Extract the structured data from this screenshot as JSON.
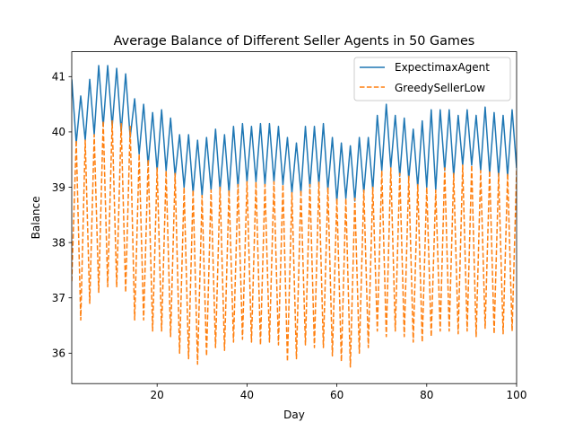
{
  "chart_data": {
    "type": "line",
    "title": "Average Balance of Different Seller Agents in 50 Games",
    "xlabel": "Day",
    "ylabel": "Balance",
    "xlim": [
      1,
      100
    ],
    "ylim": [
      35.45,
      41.45
    ],
    "xticks": [
      20,
      40,
      60,
      80,
      100
    ],
    "yticks": [
      36,
      37,
      38,
      39,
      40,
      41
    ],
    "grid": false,
    "legend_position": "upper-right",
    "colors": {
      "ExpectimaxAgent": "#1f77b4",
      "GreedySellerLow": "#ff7f0e"
    },
    "series": [
      {
        "name": "ExpectimaxAgent",
        "line_style": "solid",
        "x": [
          1,
          2,
          3,
          4,
          5,
          6,
          7,
          8,
          9,
          10,
          11,
          12,
          13,
          14,
          15,
          16,
          17,
          18,
          19,
          20,
          21,
          22,
          23,
          24,
          25,
          26,
          27,
          28,
          29,
          30,
          31,
          32,
          33,
          34,
          35,
          36,
          37,
          38,
          39,
          40,
          41,
          42,
          43,
          44,
          45,
          46,
          47,
          48,
          49,
          50,
          51,
          52,
          53,
          54,
          55,
          56,
          57,
          58,
          59,
          60,
          61,
          62,
          63,
          64,
          65,
          66,
          67,
          68,
          69,
          70,
          71,
          72,
          73,
          74,
          75,
          76,
          77,
          78,
          79,
          80,
          81,
          82,
          83,
          84,
          85,
          86,
          87,
          88,
          89,
          90,
          91,
          92,
          93,
          94,
          95,
          96,
          97,
          98,
          99,
          100
        ],
        "values": [
          40.95,
          39.8,
          40.65,
          39.85,
          40.95,
          39.95,
          41.2,
          40.1,
          41.2,
          40.1,
          41.15,
          40.0,
          41.05,
          39.9,
          40.6,
          39.6,
          40.5,
          39.4,
          40.35,
          39.3,
          40.4,
          39.3,
          40.25,
          39.2,
          39.95,
          39.0,
          39.95,
          38.9,
          39.85,
          38.85,
          39.9,
          38.95,
          40.05,
          38.95,
          39.95,
          38.9,
          40.1,
          39.0,
          40.15,
          39.1,
          40.1,
          39.1,
          40.15,
          39.05,
          40.15,
          39.1,
          40.1,
          39.05,
          39.9,
          38.9,
          39.8,
          38.9,
          40.1,
          39.0,
          40.1,
          39.05,
          40.15,
          38.95,
          39.9,
          38.75,
          39.8,
          38.8,
          39.75,
          38.75,
          39.9,
          38.9,
          39.9,
          38.95,
          40.3,
          39.3,
          40.5,
          39.35,
          40.3,
          39.2,
          40.25,
          39.15,
          40.05,
          39.0,
          40.2,
          39.0,
          40.4,
          38.95,
          40.4,
          39.3,
          40.4,
          39.2,
          40.3,
          39.4,
          40.4,
          39.4,
          40.3,
          39.3,
          40.45,
          39.25,
          40.35,
          39.2,
          40.3,
          39.2,
          40.4,
          39.35
        ]
      },
      {
        "name": "GreedySellerLow",
        "line_style": "dashed",
        "x": [
          1,
          2,
          3,
          4,
          5,
          6,
          7,
          8,
          9,
          10,
          11,
          12,
          13,
          14,
          15,
          16,
          17,
          18,
          19,
          20,
          21,
          22,
          23,
          24,
          25,
          26,
          27,
          28,
          29,
          30,
          31,
          32,
          33,
          34,
          35,
          36,
          37,
          38,
          39,
          40,
          41,
          42,
          43,
          44,
          45,
          46,
          47,
          48,
          49,
          50,
          51,
          52,
          53,
          54,
          55,
          56,
          57,
          58,
          59,
          60,
          61,
          62,
          63,
          64,
          65,
          66,
          67,
          68,
          69,
          70,
          71,
          72,
          73,
          74,
          75,
          76,
          77,
          78,
          79,
          80,
          81,
          82,
          83,
          84,
          85,
          86,
          87,
          88,
          89,
          90,
          91,
          92,
          93,
          94,
          95,
          96,
          97,
          98,
          99,
          100
        ],
        "values": [
          37.3,
          39.85,
          36.6,
          39.85,
          36.9,
          39.95,
          37.1,
          40.2,
          37.2,
          40.2,
          37.2,
          40.15,
          37.1,
          40.1,
          36.6,
          39.6,
          36.6,
          39.5,
          36.4,
          39.35,
          36.4,
          39.3,
          36.3,
          39.25,
          36.0,
          39.0,
          35.9,
          38.95,
          35.8,
          38.85,
          35.95,
          38.95,
          36.1,
          39.0,
          36.05,
          38.95,
          36.2,
          39.05,
          36.25,
          39.1,
          36.2,
          39.1,
          36.15,
          39.05,
          36.2,
          39.1,
          36.15,
          39.05,
          35.85,
          38.9,
          35.9,
          38.95,
          36.15,
          39.05,
          36.1,
          39.1,
          36.1,
          39.0,
          35.95,
          38.8,
          35.85,
          38.8,
          35.75,
          38.8,
          36.0,
          38.95,
          36.1,
          39.0,
          36.4,
          39.3,
          36.3,
          39.35,
          36.4,
          39.25,
          36.3,
          39.2,
          36.2,
          39.05,
          36.2,
          39.0,
          36.3,
          38.95,
          36.4,
          39.35,
          36.4,
          39.25,
          36.35,
          39.4,
          36.4,
          39.4,
          36.3,
          39.3,
          36.45,
          39.3,
          36.35,
          39.25,
          36.35,
          39.25,
          36.4,
          39.3
        ]
      }
    ]
  }
}
